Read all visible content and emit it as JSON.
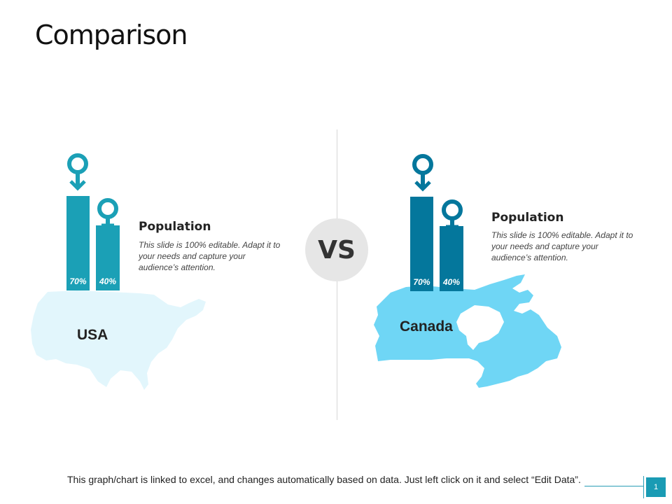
{
  "slide": {
    "title": "Comparison"
  },
  "vs_label": "VS",
  "colors": {
    "usa_bar": "#1ba0b6",
    "canada_bar": "#04779c",
    "usa_map": "#e2f6fc",
    "canada_map": "#6fd6f5"
  },
  "chart_data": [
    {
      "type": "bar",
      "country": "USA",
      "categories": [
        "male-icon",
        "female-icon"
      ],
      "values": [
        70,
        40
      ],
      "labels": [
        "70%",
        "40%"
      ],
      "heading": "Population",
      "description": "This slide is 100% editable. Adapt it to your needs and capture your audience’s attention."
    },
    {
      "type": "bar",
      "country": "Canada",
      "categories": [
        "male-icon",
        "female-icon"
      ],
      "values": [
        70,
        40
      ],
      "labels": [
        "70%",
        "40%"
      ],
      "heading": "Population",
      "description": "This slide is 100% editable. Adapt it to your needs and capture your audience’s attention."
    }
  ],
  "footer": {
    "note": "This graph/chart is linked to excel, and changes automatically based on data. Just left click on it and select “Edit Data”.",
    "page_number": "1"
  }
}
